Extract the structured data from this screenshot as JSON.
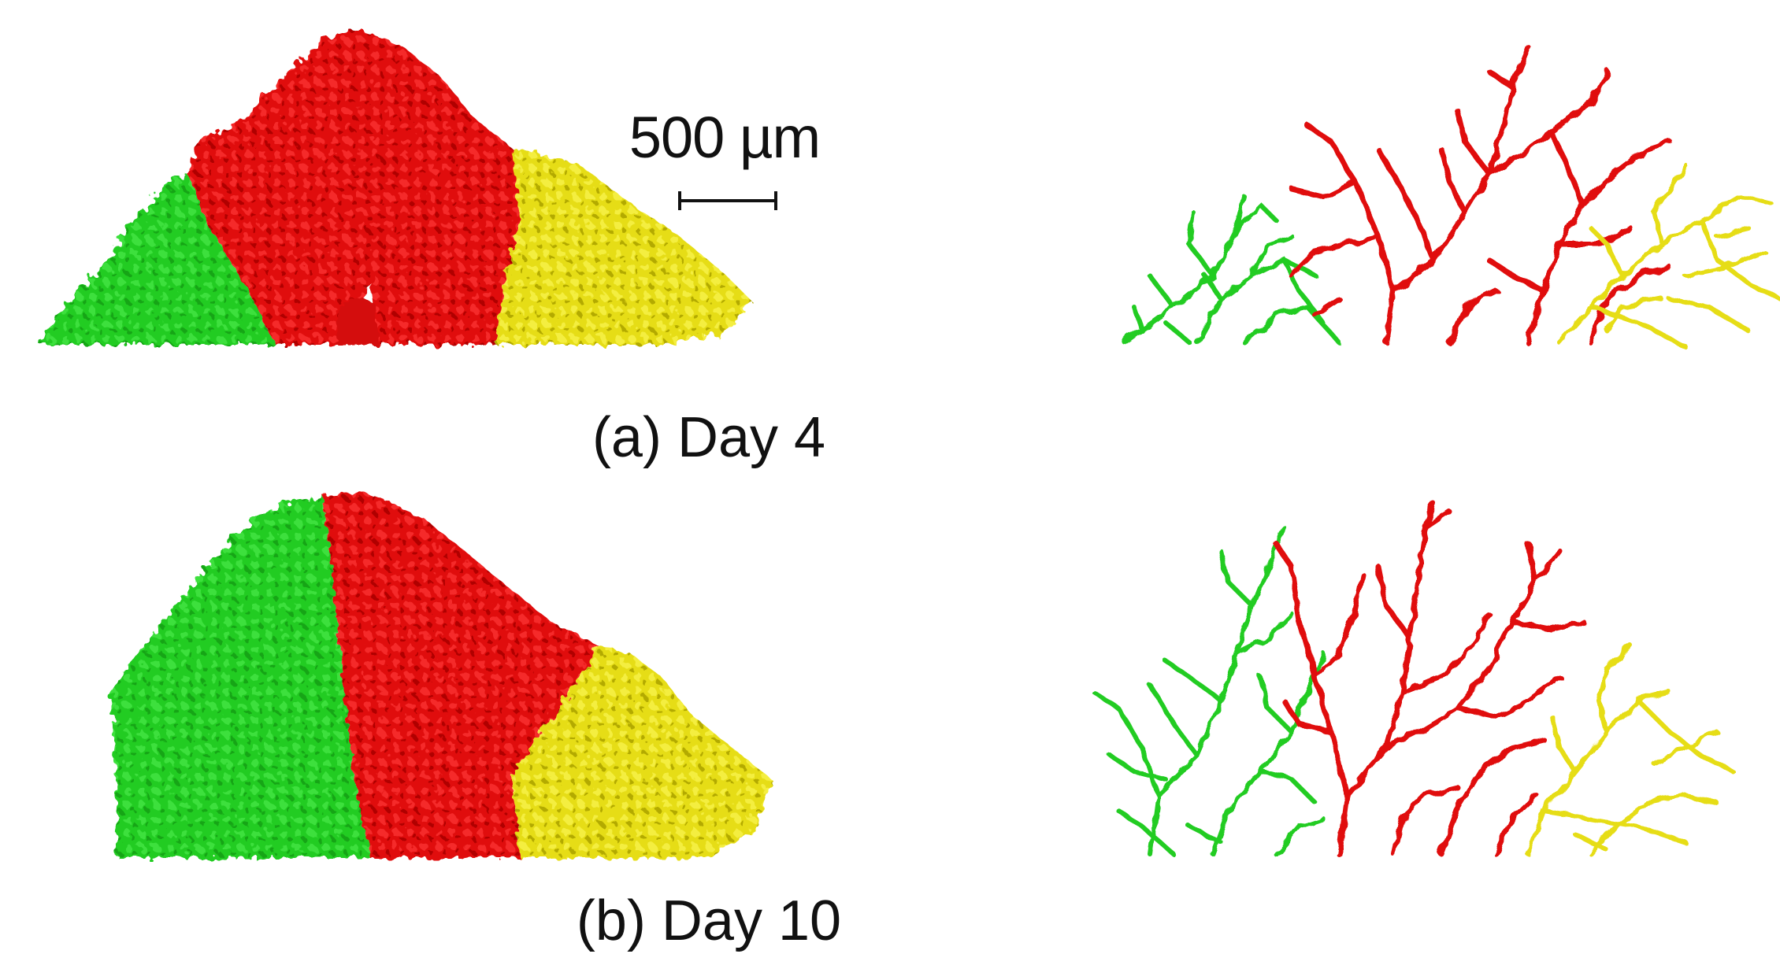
{
  "scale_bar": {
    "label": "500 µm"
  },
  "panels": [
    {
      "id": "a",
      "caption": "(a) Day 4"
    },
    {
      "id": "b",
      "caption": "(b) Day 10"
    }
  ],
  "colors": {
    "green": "#22cc22",
    "green_dark": "#119911",
    "red": "#e00f0f",
    "red_dark": "#a40000",
    "yellow": "#e6dd16",
    "yellow_dark": "#a39c00",
    "scalebar": "#111111"
  }
}
